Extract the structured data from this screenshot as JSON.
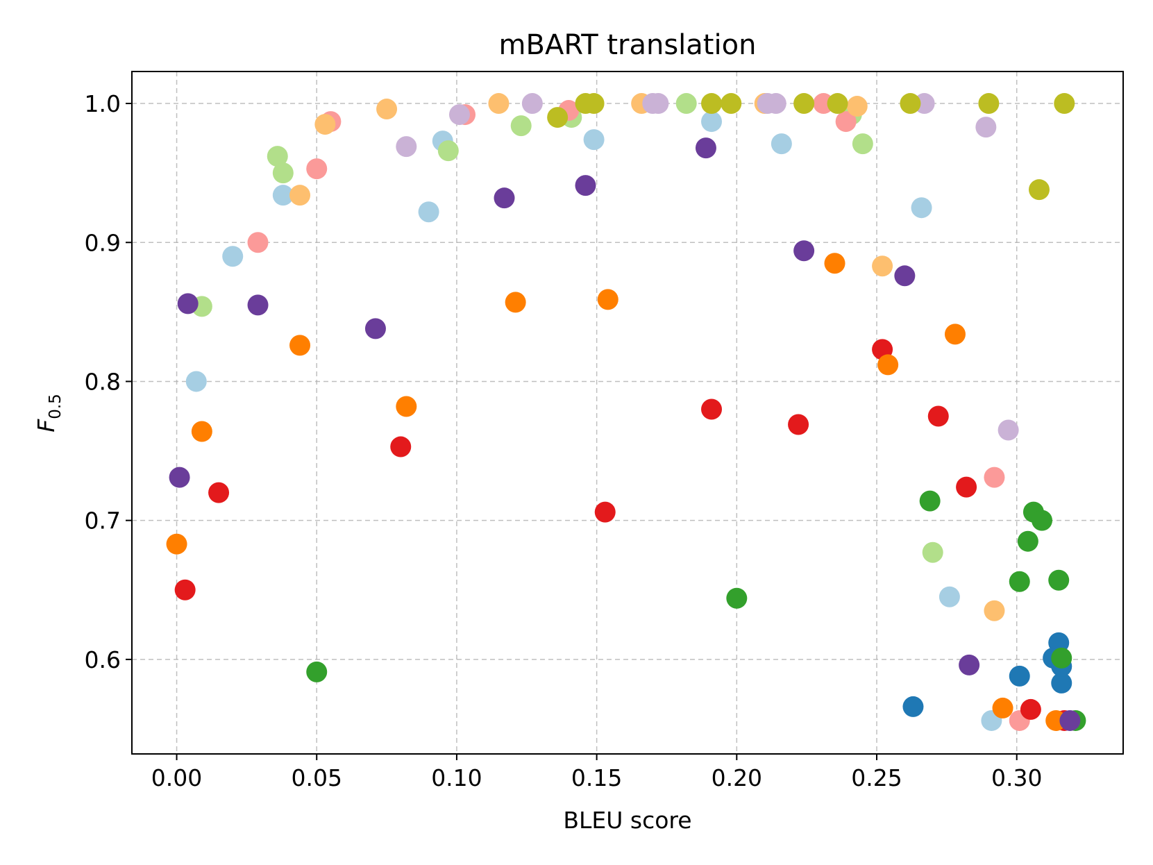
{
  "chart_data": {
    "type": "scatter",
    "title": "mBART translation",
    "xlabel": "BLEU score",
    "ylabel": "F",
    "ylabel_sub": "0.5",
    "xlim": [
      -0.016,
      0.338
    ],
    "ylim": [
      0.532,
      1.023
    ],
    "xticks": [
      {
        "value": 0.0,
        "label": "0.00"
      },
      {
        "value": 0.05,
        "label": "0.05"
      },
      {
        "value": 0.1,
        "label": "0.10"
      },
      {
        "value": 0.15,
        "label": "0.15"
      },
      {
        "value": 0.2,
        "label": "0.20"
      },
      {
        "value": 0.25,
        "label": "0.25"
      },
      {
        "value": 0.3,
        "label": "0.30"
      }
    ],
    "yticks": [
      {
        "value": 0.6,
        "label": "0.6"
      },
      {
        "value": 0.7,
        "label": "0.7"
      },
      {
        "value": 0.8,
        "label": "0.8"
      },
      {
        "value": 0.9,
        "label": "0.9"
      },
      {
        "value": 1.0,
        "label": "1.0"
      }
    ],
    "grid": true,
    "legend": "none",
    "series": [
      {
        "color": "#a6cee3",
        "points": [
          [
            0.007,
            0.8
          ],
          [
            0.02,
            0.89
          ],
          [
            0.038,
            0.934
          ],
          [
            0.09,
            0.922
          ],
          [
            0.095,
            0.973
          ],
          [
            0.149,
            0.974
          ],
          [
            0.191,
            0.987
          ],
          [
            0.216,
            0.971
          ],
          [
            0.266,
            0.925
          ],
          [
            0.276,
            0.645
          ],
          [
            0.291,
            0.556
          ]
        ]
      },
      {
        "color": "#1f78b4",
        "points": [
          [
            0.263,
            0.566
          ],
          [
            0.301,
            0.588
          ],
          [
            0.313,
            0.601
          ],
          [
            0.315,
            0.612
          ],
          [
            0.316,
            0.583
          ],
          [
            0.316,
            0.595
          ]
        ]
      },
      {
        "color": "#b2df8a",
        "points": [
          [
            0.009,
            0.854
          ],
          [
            0.036,
            0.962
          ],
          [
            0.038,
            0.95
          ],
          [
            0.097,
            0.966
          ],
          [
            0.123,
            0.984
          ],
          [
            0.141,
            0.99
          ],
          [
            0.182,
            1.0
          ],
          [
            0.241,
            0.992
          ],
          [
            0.245,
            0.971
          ],
          [
            0.27,
            0.677
          ]
        ]
      },
      {
        "color": "#33a02c",
        "points": [
          [
            0.05,
            0.591
          ],
          [
            0.2,
            0.644
          ],
          [
            0.269,
            0.714
          ],
          [
            0.301,
            0.656
          ],
          [
            0.304,
            0.685
          ],
          [
            0.306,
            0.706
          ],
          [
            0.309,
            0.7
          ],
          [
            0.315,
            0.657
          ],
          [
            0.316,
            0.601
          ],
          [
            0.321,
            0.556
          ]
        ]
      },
      {
        "color": "#fb9a99",
        "points": [
          [
            0.029,
            0.9
          ],
          [
            0.05,
            0.953
          ],
          [
            0.055,
            0.987
          ],
          [
            0.103,
            0.992
          ],
          [
            0.14,
            0.995
          ],
          [
            0.231,
            1.0
          ],
          [
            0.239,
            0.987
          ],
          [
            0.292,
            0.731
          ],
          [
            0.301,
            0.556
          ]
        ]
      },
      {
        "color": "#e31a1c",
        "points": [
          [
            0.003,
            0.65
          ],
          [
            0.015,
            0.72
          ],
          [
            0.08,
            0.753
          ],
          [
            0.153,
            0.706
          ],
          [
            0.191,
            0.78
          ],
          [
            0.222,
            0.769
          ],
          [
            0.252,
            0.823
          ],
          [
            0.272,
            0.775
          ],
          [
            0.282,
            0.724
          ],
          [
            0.305,
            0.564
          ],
          [
            0.317,
            0.556
          ]
        ]
      },
      {
        "color": "#fdbf6f",
        "points": [
          [
            0.044,
            0.934
          ],
          [
            0.053,
            0.985
          ],
          [
            0.075,
            0.996
          ],
          [
            0.115,
            1.0
          ],
          [
            0.166,
            1.0
          ],
          [
            0.21,
            1.0
          ],
          [
            0.243,
            0.998
          ],
          [
            0.252,
            0.883
          ],
          [
            0.292,
            0.635
          ]
        ]
      },
      {
        "color": "#ff7f00",
        "points": [
          [
            0.0,
            0.683
          ],
          [
            0.009,
            0.764
          ],
          [
            0.044,
            0.826
          ],
          [
            0.082,
            0.782
          ],
          [
            0.121,
            0.857
          ],
          [
            0.154,
            0.859
          ],
          [
            0.235,
            0.885
          ],
          [
            0.254,
            0.812
          ],
          [
            0.278,
            0.834
          ],
          [
            0.295,
            0.565
          ],
          [
            0.314,
            0.556
          ]
        ]
      },
      {
        "color": "#cab2d6",
        "points": [
          [
            0.082,
            0.969
          ],
          [
            0.101,
            0.992
          ],
          [
            0.127,
            1.0
          ],
          [
            0.17,
            1.0
          ],
          [
            0.172,
            1.0
          ],
          [
            0.211,
            1.0
          ],
          [
            0.214,
            1.0
          ],
          [
            0.267,
            1.0
          ],
          [
            0.289,
            0.983
          ],
          [
            0.297,
            0.765
          ]
        ]
      },
      {
        "color": "#6a3d9a",
        "points": [
          [
            0.001,
            0.731
          ],
          [
            0.004,
            0.856
          ],
          [
            0.029,
            0.855
          ],
          [
            0.071,
            0.838
          ],
          [
            0.117,
            0.932
          ],
          [
            0.146,
            0.941
          ],
          [
            0.189,
            0.968
          ],
          [
            0.224,
            0.894
          ],
          [
            0.26,
            0.876
          ],
          [
            0.283,
            0.596
          ],
          [
            0.319,
            0.556
          ]
        ]
      },
      {
        "color": "#bcbd22",
        "points": [
          [
            0.136,
            0.99
          ],
          [
            0.146,
            1.0
          ],
          [
            0.149,
            1.0
          ],
          [
            0.191,
            1.0
          ],
          [
            0.198,
            1.0
          ],
          [
            0.224,
            1.0
          ],
          [
            0.236,
            1.0
          ],
          [
            0.262,
            1.0
          ],
          [
            0.29,
            1.0
          ],
          [
            0.308,
            0.938
          ],
          [
            0.317,
            1.0
          ]
        ]
      }
    ]
  }
}
